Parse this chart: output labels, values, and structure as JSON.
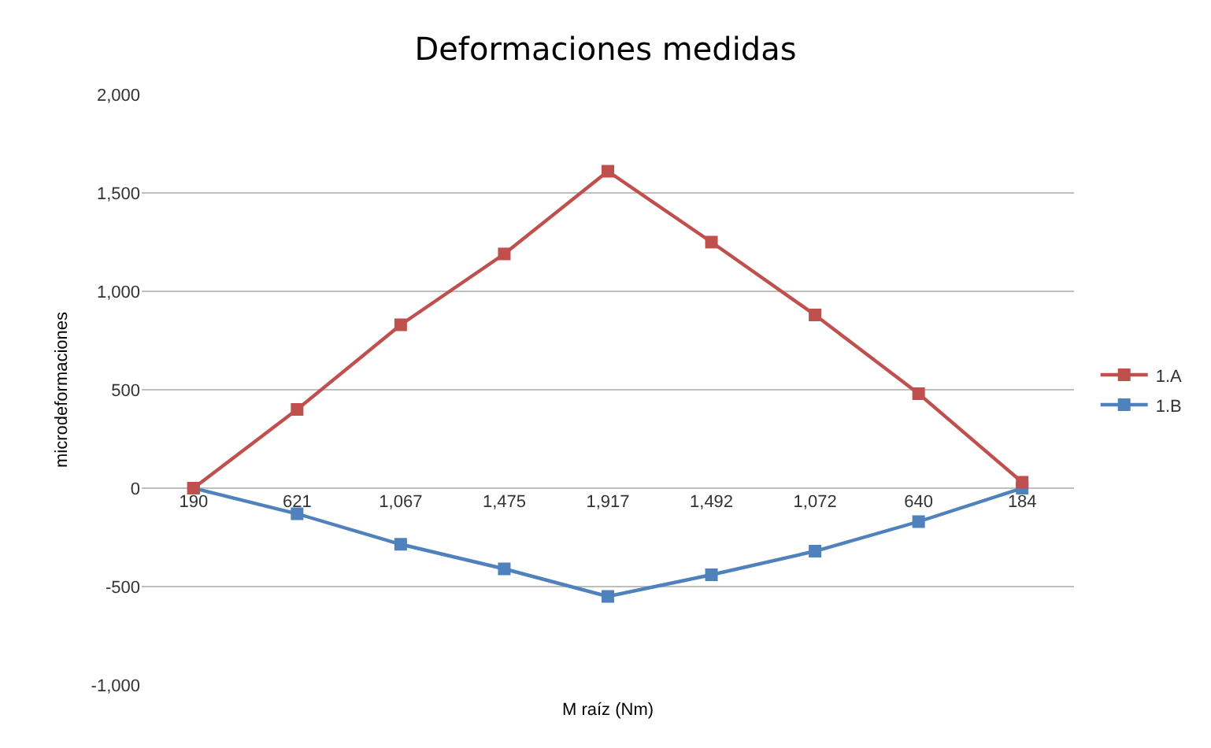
{
  "chart_data": {
    "type": "line",
    "title": "Deformaciones medidas",
    "xlabel": "M raíz (Nm)",
    "ylabel": "microdeformaciones",
    "categories": [
      "190",
      "621",
      "1,067",
      "1,475",
      "1,917",
      "1,492",
      "1,072",
      "640",
      "184"
    ],
    "series": [
      {
        "name": "1.A",
        "color": "#c0504d",
        "values": [
          0,
          400,
          830,
          1190,
          1610,
          1250,
          880,
          480,
          30
        ]
      },
      {
        "name": "1.B",
        "color": "#4f81bd",
        "values": [
          0,
          -130,
          -285,
          -410,
          -550,
          -440,
          -320,
          -170,
          0
        ]
      }
    ],
    "ylim": [
      -1000,
      2000
    ],
    "yticks": [
      {
        "value": -1000,
        "label": "-1,000"
      },
      {
        "value": -500,
        "label": "-500"
      },
      0,
      500,
      {
        "value": 1000,
        "label": "1,000"
      },
      {
        "value": 1500,
        "label": "1,500"
      },
      {
        "value": 2000,
        "label": "2,000"
      }
    ],
    "grid": "y",
    "legend": "right",
    "marker": "square",
    "line_style": "solid"
  }
}
